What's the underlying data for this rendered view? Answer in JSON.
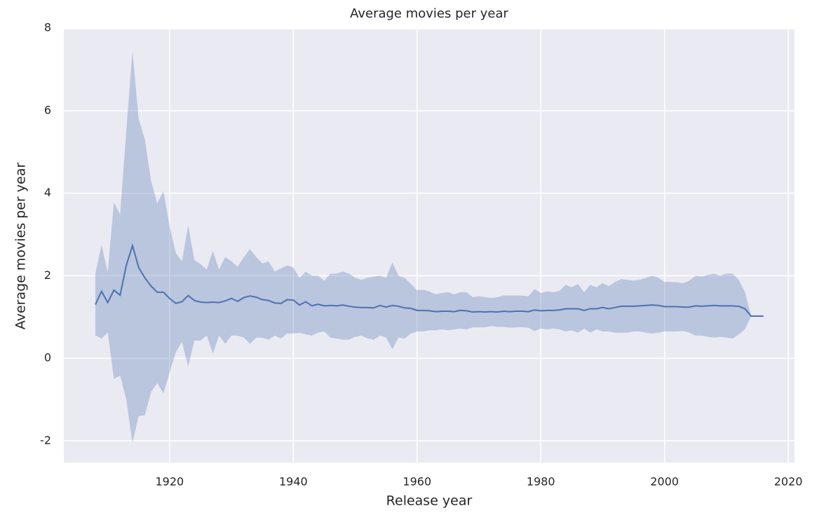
{
  "chart_data": {
    "type": "line",
    "title": "Average movies per year",
    "xlabel": "Release year",
    "ylabel": "Average movies per year",
    "x": [
      1908,
      1909,
      1910,
      1911,
      1912,
      1913,
      1914,
      1915,
      1916,
      1917,
      1918,
      1919,
      1920,
      1921,
      1922,
      1923,
      1924,
      1925,
      1926,
      1927,
      1928,
      1929,
      1930,
      1931,
      1932,
      1933,
      1934,
      1935,
      1936,
      1937,
      1938,
      1939,
      1940,
      1941,
      1942,
      1943,
      1944,
      1945,
      1946,
      1947,
      1948,
      1949,
      1950,
      1951,
      1952,
      1953,
      1954,
      1955,
      1956,
      1957,
      1958,
      1959,
      1960,
      1961,
      1962,
      1963,
      1964,
      1965,
      1966,
      1967,
      1968,
      1969,
      1970,
      1971,
      1972,
      1973,
      1974,
      1975,
      1976,
      1977,
      1978,
      1979,
      1980,
      1981,
      1982,
      1983,
      1984,
      1985,
      1986,
      1987,
      1988,
      1989,
      1990,
      1991,
      1992,
      1993,
      1994,
      1995,
      1996,
      1997,
      1998,
      1999,
      2000,
      2001,
      2002,
      2003,
      2004,
      2005,
      2006,
      2007,
      2008,
      2009,
      2010,
      2011,
      2012,
      2013,
      2014,
      2015,
      2016
    ],
    "series": [
      {
        "color": "#4c72b0",
        "values": [
          1.3,
          1.62,
          1.35,
          1.65,
          1.53,
          2.25,
          2.73,
          2.2,
          1.95,
          1.75,
          1.6,
          1.6,
          1.45,
          1.33,
          1.37,
          1.52,
          1.4,
          1.36,
          1.35,
          1.36,
          1.35,
          1.39,
          1.45,
          1.38,
          1.47,
          1.51,
          1.48,
          1.42,
          1.4,
          1.34,
          1.33,
          1.42,
          1.41,
          1.29,
          1.37,
          1.27,
          1.31,
          1.27,
          1.28,
          1.27,
          1.29,
          1.26,
          1.24,
          1.23,
          1.23,
          1.22,
          1.28,
          1.24,
          1.28,
          1.26,
          1.22,
          1.21,
          1.16,
          1.16,
          1.15,
          1.13,
          1.14,
          1.14,
          1.13,
          1.16,
          1.15,
          1.12,
          1.13,
          1.12,
          1.13,
          1.12,
          1.14,
          1.13,
          1.14,
          1.14,
          1.13,
          1.17,
          1.15,
          1.16,
          1.16,
          1.17,
          1.2,
          1.2,
          1.2,
          1.16,
          1.2,
          1.2,
          1.23,
          1.2,
          1.23,
          1.26,
          1.26,
          1.26,
          1.27,
          1.28,
          1.29,
          1.28,
          1.25,
          1.25,
          1.25,
          1.24,
          1.24,
          1.27,
          1.26,
          1.27,
          1.28,
          1.27,
          1.27,
          1.27,
          1.26,
          1.2,
          1.02,
          1.02,
          1.02
        ]
      }
    ],
    "band": {
      "color": "#4c72b0",
      "lower": [
        0.55,
        0.48,
        0.62,
        -0.5,
        -0.42,
        -1.0,
        -2.05,
        -1.4,
        -1.38,
        -0.82,
        -0.6,
        -0.85,
        -0.35,
        0.15,
        0.4,
        -0.2,
        0.43,
        0.43,
        0.55,
        0.12,
        0.55,
        0.35,
        0.55,
        0.55,
        0.5,
        0.35,
        0.5,
        0.5,
        0.45,
        0.55,
        0.48,
        0.6,
        0.6,
        0.62,
        0.58,
        0.55,
        0.62,
        0.65,
        0.5,
        0.48,
        0.45,
        0.45,
        0.52,
        0.55,
        0.48,
        0.45,
        0.55,
        0.5,
        0.22,
        0.5,
        0.48,
        0.6,
        0.65,
        0.65,
        0.68,
        0.68,
        0.7,
        0.68,
        0.7,
        0.72,
        0.7,
        0.75,
        0.75,
        0.75,
        0.78,
        0.76,
        0.76,
        0.74,
        0.75,
        0.75,
        0.74,
        0.66,
        0.72,
        0.7,
        0.72,
        0.7,
        0.65,
        0.68,
        0.62,
        0.72,
        0.62,
        0.7,
        0.65,
        0.65,
        0.62,
        0.62,
        0.62,
        0.65,
        0.65,
        0.62,
        0.6,
        0.62,
        0.65,
        0.65,
        0.65,
        0.66,
        0.62,
        0.55,
        0.55,
        0.52,
        0.5,
        0.52,
        0.5,
        0.48,
        0.58,
        0.7,
        1.02,
        1.02,
        1.02
      ],
      "upper": [
        2.05,
        2.75,
        2.08,
        3.78,
        3.48,
        5.5,
        7.45,
        5.8,
        5.3,
        4.3,
        3.75,
        4.05,
        3.2,
        2.55,
        2.35,
        3.22,
        2.38,
        2.28,
        2.15,
        2.6,
        2.15,
        2.45,
        2.35,
        2.22,
        2.45,
        2.65,
        2.45,
        2.3,
        2.35,
        2.1,
        2.18,
        2.25,
        2.2,
        1.95,
        2.1,
        2.0,
        2.0,
        1.88,
        2.05,
        2.05,
        2.1,
        2.05,
        1.95,
        1.9,
        1.95,
        1.98,
        2.0,
        1.95,
        2.32,
        2.0,
        1.95,
        1.8,
        1.65,
        1.66,
        1.62,
        1.55,
        1.58,
        1.6,
        1.55,
        1.6,
        1.6,
        1.48,
        1.5,
        1.48,
        1.46,
        1.48,
        1.52,
        1.52,
        1.52,
        1.52,
        1.5,
        1.68,
        1.58,
        1.62,
        1.6,
        1.63,
        1.78,
        1.72,
        1.8,
        1.6,
        1.78,
        1.72,
        1.82,
        1.75,
        1.85,
        1.92,
        1.9,
        1.88,
        1.9,
        1.95,
        2.0,
        1.95,
        1.85,
        1.85,
        1.84,
        1.82,
        1.88,
        2.0,
        1.98,
        2.02,
        2.05,
        2.0,
        2.05,
        2.05,
        1.9,
        1.6,
        1.02,
        1.02,
        1.02
      ]
    },
    "xlim": [
      1902.9,
      2021.0
    ],
    "ylim": [
      -2.53,
      7.97
    ],
    "xticks": [
      1920,
      1940,
      1960,
      1980,
      2000,
      2020
    ],
    "yticks": [
      -2,
      0,
      2,
      4,
      6,
      8
    ],
    "grid": true
  }
}
